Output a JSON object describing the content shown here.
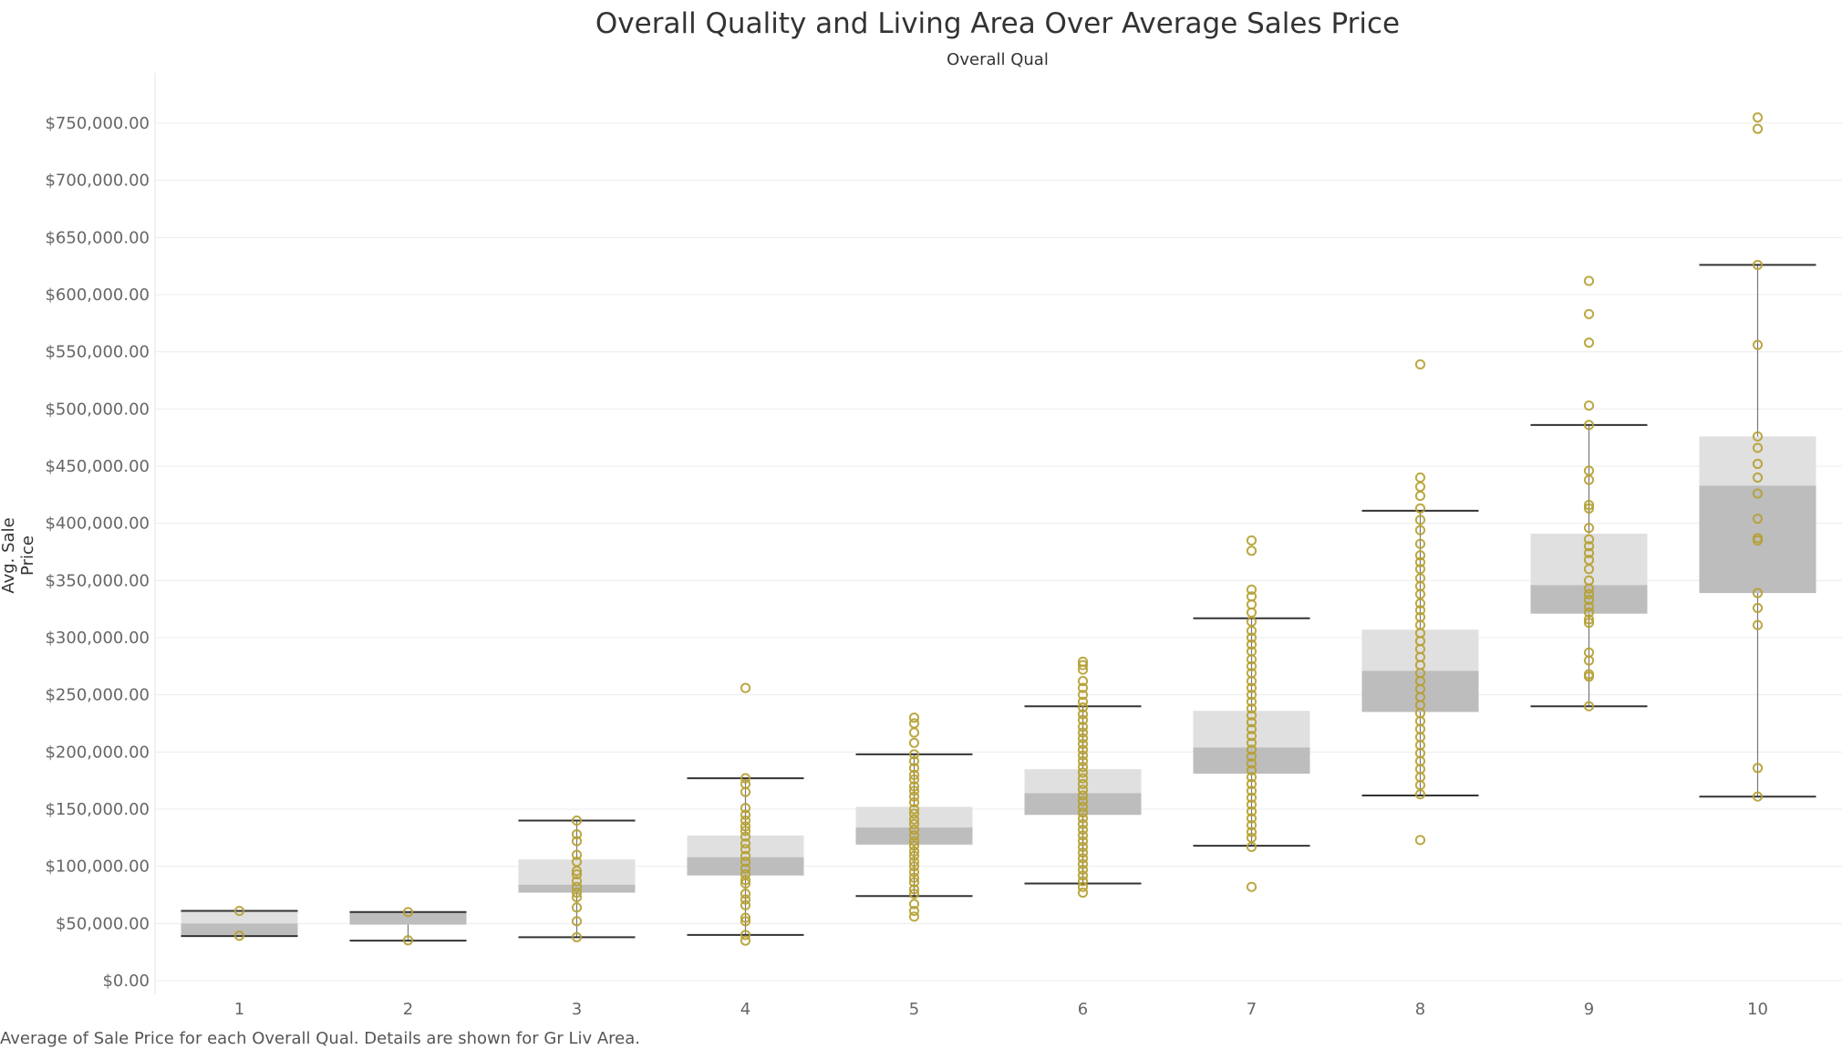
{
  "title": "Overall Quality and Living Area Over Average Sales Price",
  "column_header": "Overall Qual",
  "caption": "Average of Sale Price for each Overall Qual.  Details are shown for Gr Liv Area.",
  "colors": {
    "point": "#b5a031",
    "box_upper": "#e0e0e0",
    "box_lower": "#bdbdbd",
    "whisker": "#333333",
    "grid": "#ececec",
    "text": "#333333",
    "tick": "#666666"
  },
  "chart_data": {
    "type": "box",
    "title": "Overall Quality and Living Area Over Average Sales Price",
    "xlabel": "Overall Qual",
    "ylabel": "Avg. Sale Price",
    "ylim": [
      0,
      770000
    ],
    "grid": true,
    "y_ticks": [
      {
        "value": 0,
        "label": "$0.00"
      },
      {
        "value": 50000,
        "label": "$50,000.00"
      },
      {
        "value": 100000,
        "label": "$100,000.00"
      },
      {
        "value": 150000,
        "label": "$150,000.00"
      },
      {
        "value": 200000,
        "label": "$200,000.00"
      },
      {
        "value": 250000,
        "label": "$250,000.00"
      },
      {
        "value": 300000,
        "label": "$300,000.00"
      },
      {
        "value": 350000,
        "label": "$350,000.00"
      },
      {
        "value": 400000,
        "label": "$400,000.00"
      },
      {
        "value": 450000,
        "label": "$450,000.00"
      },
      {
        "value": 500000,
        "label": "$500,000.00"
      },
      {
        "value": 550000,
        "label": "$550,000.00"
      },
      {
        "value": 600000,
        "label": "$600,000.00"
      },
      {
        "value": 650000,
        "label": "$650,000.00"
      },
      {
        "value": 700000,
        "label": "$700,000.00"
      },
      {
        "value": 750000,
        "label": "$750,000.00"
      }
    ],
    "categories": [
      "1",
      "2",
      "3",
      "4",
      "5",
      "6",
      "7",
      "8",
      "9",
      "10"
    ],
    "boxes": [
      {
        "category": "1",
        "whisker_low": 39000,
        "q1": 39000,
        "median": 50000,
        "q3": 61000,
        "whisker_high": 61000,
        "points": [
          61000,
          39300
        ]
      },
      {
        "category": "2",
        "whisker_low": 35000,
        "q1": 49000,
        "median": 60000,
        "q3": 60000,
        "whisker_high": 60000,
        "points": [
          60000,
          35300
        ]
      },
      {
        "category": "3",
        "whisker_low": 38000,
        "q1": 77000,
        "median": 84000,
        "q3": 106000,
        "whisker_high": 140000,
        "points": [
          140000,
          128000,
          122000,
          110000,
          104000,
          96000,
          93000,
          87000,
          82000,
          77000,
          73000,
          64000,
          52000,
          38000
        ]
      },
      {
        "category": "4",
        "whisker_low": 40000,
        "q1": 92000,
        "median": 108000,
        "q3": 127000,
        "whisker_high": 177000,
        "points": [
          256000,
          177000,
          172000,
          165000,
          151000,
          145000,
          140000,
          135000,
          131000,
          126000,
          120000,
          115000,
          109000,
          104000,
          98000,
          93000,
          88000,
          85000,
          76000,
          71000,
          66000,
          55000,
          52000,
          40000,
          35000
        ]
      },
      {
        "category": "5",
        "whisker_low": 74000,
        "q1": 119000,
        "median": 134000,
        "q3": 152000,
        "whisker_high": 198000,
        "points": [
          230000,
          225000,
          217000,
          208000,
          198000,
          192000,
          186000,
          180000,
          176000,
          170000,
          166000,
          161000,
          156000,
          150000,
          146000,
          141000,
          137000,
          132000,
          127000,
          122000,
          118000,
          113000,
          109000,
          104000,
          100000,
          95000,
          90000,
          86000,
          80000,
          76000,
          67000,
          61000,
          56000
        ]
      },
      {
        "category": "6",
        "whisker_low": 85000,
        "q1": 145000,
        "median": 164000,
        "q3": 185000,
        "whisker_high": 240000,
        "points": [
          279000,
          276000,
          272000,
          262000,
          256000,
          250000,
          244000,
          239000,
          233000,
          228000,
          222000,
          217000,
          212000,
          207000,
          202000,
          197000,
          192000,
          187000,
          182000,
          177000,
          172000,
          167000,
          162000,
          157000,
          152000,
          147000,
          142000,
          137000,
          132000,
          127000,
          122000,
          117000,
          112000,
          107000,
          102000,
          97000,
          92000,
          87000,
          82000,
          77000
        ]
      },
      {
        "category": "7",
        "whisker_low": 118000,
        "q1": 181000,
        "median": 204000,
        "q3": 236000,
        "whisker_high": 317000,
        "points": [
          385000,
          376000,
          342000,
          336000,
          329000,
          322000,
          314000,
          306000,
          300000,
          294000,
          288000,
          281000,
          275000,
          269000,
          262000,
          256000,
          250000,
          244000,
          238000,
          232000,
          226000,
          220000,
          214000,
          208000,
          202000,
          196000,
          190000,
          184000,
          178000,
          172000,
          166000,
          160000,
          154000,
          148000,
          142000,
          136000,
          130000,
          125000,
          117000,
          82000
        ]
      },
      {
        "category": "8",
        "whisker_low": 162000,
        "q1": 235000,
        "median": 271000,
        "q3": 307000,
        "whisker_high": 411000,
        "points": [
          539000,
          440000,
          432000,
          424000,
          413000,
          403000,
          394000,
          382000,
          372000,
          366000,
          360000,
          352000,
          345000,
          338000,
          330000,
          324000,
          318000,
          311000,
          304000,
          297000,
          290000,
          283000,
          276000,
          269000,
          262000,
          255000,
          248000,
          241000,
          234000,
          227000,
          220000,
          213000,
          206000,
          199000,
          192000,
          185000,
          178000,
          171000,
          163000,
          123000
        ]
      },
      {
        "category": "9",
        "whisker_low": 240000,
        "q1": 321000,
        "median": 346000,
        "q3": 391000,
        "whisker_high": 486000,
        "points": [
          612000,
          583000,
          558000,
          503000,
          486000,
          446000,
          438000,
          416000,
          413000,
          396000,
          386000,
          380000,
          374000,
          368000,
          360000,
          350000,
          343000,
          338000,
          333000,
          327000,
          322000,
          316000,
          313000,
          287000,
          280000,
          268000,
          266000,
          240000
        ]
      },
      {
        "category": "10",
        "whisker_low": 161000,
        "q1": 339000,
        "median": 433000,
        "q3": 476000,
        "whisker_high": 626000,
        "points": [
          755000,
          745000,
          626000,
          556000,
          476000,
          466000,
          452000,
          440000,
          426000,
          404000,
          387000,
          385000,
          339000,
          326000,
          311000,
          186000,
          161000
        ]
      }
    ]
  }
}
